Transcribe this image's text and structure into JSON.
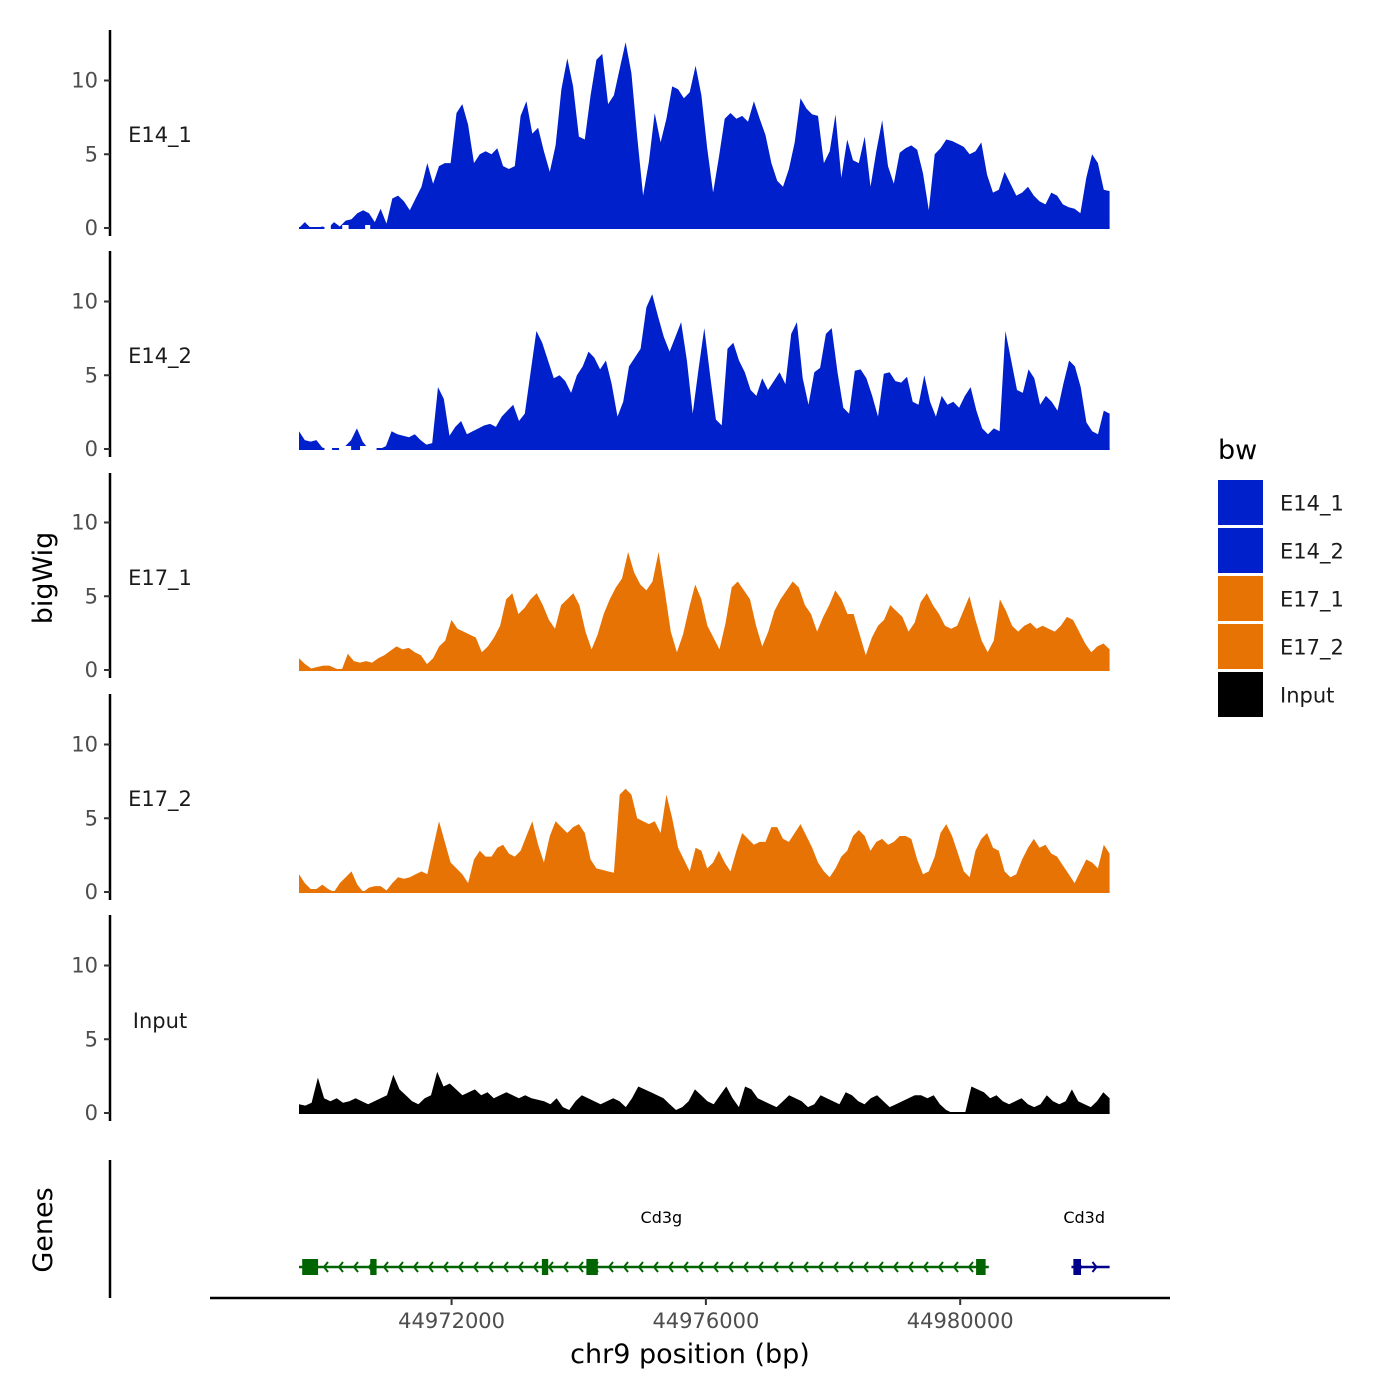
{
  "chart_data": {
    "type": "area",
    "chromosome": "chr9",
    "xlabel": "chr9 position (bp)",
    "ylabel": "bigWig",
    "genes_label": "Genes",
    "xlim": [
      44968200,
      44983300
    ],
    "ylim": [
      0,
      13.5
    ],
    "x_ticks": [
      44972000,
      44976000,
      44980000
    ],
    "x_tick_labels": [
      "44972000",
      "44976000",
      "44980000"
    ],
    "y_ticks": [
      0,
      5,
      10
    ],
    "y_tick_labels": [
      "0",
      "5",
      "10"
    ],
    "legend": {
      "title": "bw",
      "entries": [
        {
          "label": "E14_1",
          "color": "#0020CC"
        },
        {
          "label": "E14_2",
          "color": "#0020CC"
        },
        {
          "label": "E17_1",
          "color": "#E87305"
        },
        {
          "label": "E17_2",
          "color": "#E87305"
        },
        {
          "label": "Input",
          "color": "#000000"
        }
      ]
    },
    "series": [
      {
        "name": "E14_1",
        "color": "#0020CC",
        "x_start": 44969600,
        "x_end": 44982350,
        "values": [
          0.0,
          0.4,
          0.0,
          0.0,
          0.1,
          0.0,
          0.4,
          0.1,
          0.5,
          0.6,
          1.0,
          1.2,
          1.0,
          0.4,
          1.3,
          0.3,
          2.0,
          2.2,
          1.8,
          1.2,
          2.0,
          2.8,
          4.4,
          3.0,
          4.2,
          4.4,
          4.4,
          7.8,
          8.4,
          7.0,
          4.4,
          5.0,
          5.2,
          5.0,
          5.4,
          4.2,
          4.0,
          4.2,
          7.6,
          8.6,
          6.4,
          6.8,
          5.2,
          3.8,
          5.6,
          9.4,
          11.5,
          9.6,
          6.2,
          6.0,
          9.0,
          11.4,
          11.8,
          8.4,
          9.0,
          10.8,
          12.6,
          10.5,
          6.2,
          2.2,
          4.5,
          7.8,
          5.8,
          7.4,
          9.6,
          9.4,
          8.8,
          9.2,
          11.0,
          9.0,
          5.4,
          2.4,
          4.8,
          7.4,
          7.8,
          7.4,
          7.6,
          7.2,
          8.6,
          7.4,
          6.3,
          4.4,
          3.2,
          2.8,
          4.0,
          5.8,
          8.8,
          8.1,
          7.7,
          7.6,
          4.4,
          5.2,
          7.7,
          3.4,
          6.0,
          4.6,
          4.4,
          6.2,
          2.8,
          5.2,
          7.3,
          4.2,
          3.0,
          5.1,
          5.4,
          5.6,
          5.3,
          3.7,
          1.2,
          5.0,
          5.4,
          6.0,
          5.9,
          5.7,
          5.5,
          5.0,
          5.2,
          5.8,
          3.6,
          2.4,
          2.6,
          3.8,
          3.0,
          2.2,
          2.4,
          2.8,
          2.2,
          1.8,
          1.6,
          2.4,
          2.2,
          1.6,
          1.4,
          1.3,
          1.0,
          3.4,
          5.0,
          4.4,
          2.6,
          2.5
        ],
        "gaps": [
          [
            44970000,
            44970100
          ],
          [
            44970280,
            44970380
          ],
          [
            44970640,
            44970720
          ]
        ]
      },
      {
        "name": "E14_2",
        "color": "#0020CC",
        "x_start": 44969600,
        "x_end": 44982350,
        "values": [
          1.2,
          0.6,
          0.5,
          0.6,
          0.1,
          0.0,
          0.0,
          0.0,
          0.2,
          0.6,
          1.4,
          0.5,
          0.0,
          0.0,
          0.0,
          0.2,
          1.2,
          1.0,
          0.9,
          0.8,
          1.0,
          0.6,
          0.3,
          0.4,
          4.2,
          3.4,
          0.9,
          1.5,
          1.9,
          1.0,
          1.2,
          1.4,
          1.6,
          1.7,
          1.5,
          2.2,
          2.6,
          3.0,
          1.9,
          2.4,
          5.2,
          8.0,
          7.2,
          6.0,
          4.8,
          5.0,
          4.6,
          3.8,
          5.0,
          5.6,
          6.6,
          6.2,
          5.4,
          6.0,
          4.4,
          2.2,
          3.2,
          5.6,
          6.2,
          6.8,
          9.6,
          10.5,
          9.0,
          7.6,
          6.6,
          7.6,
          8.6,
          6.0,
          2.4,
          5.4,
          8.2,
          5.0,
          2.0,
          1.6,
          6.8,
          7.2,
          6.0,
          5.2,
          4.0,
          3.6,
          4.8,
          4.0,
          4.6,
          5.2,
          4.4,
          7.8,
          8.6,
          4.8,
          3.0,
          5.2,
          5.5,
          7.8,
          8.2,
          5.2,
          2.8,
          2.4,
          5.3,
          5.4,
          4.8,
          3.6,
          2.2,
          5.1,
          5.2,
          4.6,
          4.5,
          4.9,
          3.2,
          3.0,
          5.0,
          3.2,
          2.2,
          3.6,
          3.0,
          3.2,
          2.8,
          3.6,
          4.2,
          2.6,
          1.4,
          1.0,
          1.4,
          1.2,
          8.0,
          6.0,
          4.0,
          3.8,
          5.4,
          4.8,
          3.0,
          3.6,
          3.2,
          2.6,
          4.4,
          6.0,
          5.6,
          4.2,
          1.8,
          1.2,
          1.0,
          2.6,
          2.4
        ],
        "gaps": [
          [
            44970000,
            44970120
          ],
          [
            44970230,
            44970420
          ],
          [
            44970560,
            44970820
          ]
        ]
      },
      {
        "name": "E17_1",
        "color": "#E87305",
        "x_start": 44969600,
        "x_end": 44982350,
        "values": [
          0.8,
          0.4,
          0.1,
          0.2,
          0.3,
          0.3,
          0.1,
          0.0,
          1.1,
          0.6,
          0.5,
          0.6,
          0.5,
          0.8,
          1.0,
          1.3,
          1.6,
          1.4,
          1.5,
          1.2,
          1.0,
          0.4,
          0.8,
          1.6,
          2.0,
          3.4,
          2.8,
          2.6,
          2.4,
          2.2,
          1.2,
          1.6,
          2.2,
          3.0,
          4.8,
          5.2,
          3.8,
          4.2,
          4.8,
          5.2,
          4.4,
          3.4,
          2.8,
          4.4,
          4.8,
          5.2,
          4.4,
          2.6,
          1.4,
          2.4,
          3.8,
          4.8,
          5.6,
          6.2,
          8.0,
          6.6,
          5.8,
          5.4,
          6.0,
          8.0,
          5.4,
          2.6,
          1.2,
          2.4,
          4.2,
          5.8,
          4.8,
          3.0,
          2.2,
          1.4,
          3.2,
          5.6,
          6.0,
          5.4,
          4.8,
          3.0,
          1.6,
          2.6,
          4.0,
          4.8,
          5.4,
          6.0,
          5.6,
          4.4,
          3.8,
          2.6,
          3.6,
          4.4,
          5.4,
          4.8,
          3.8,
          3.8,
          2.4,
          1.0,
          2.2,
          3.0,
          3.4,
          4.4,
          4.0,
          3.6,
          2.6,
          3.2,
          4.6,
          5.2,
          4.4,
          3.8,
          3.0,
          2.8,
          3.0,
          4.0,
          5.0,
          3.4,
          2.0,
          1.2,
          2.0,
          4.8,
          4.0,
          3.0,
          2.6,
          3.0,
          3.2,
          2.8,
          3.0,
          2.8,
          2.6,
          3.0,
          3.6,
          3.4,
          2.6,
          1.8,
          1.2,
          1.6,
          1.8,
          1.4
        ],
        "gaps": []
      },
      {
        "name": "E17_2",
        "color": "#E87305",
        "x_start": 44969600,
        "x_end": 44982350,
        "values": [
          1.2,
          0.6,
          0.2,
          0.2,
          0.5,
          0.2,
          0.0,
          0.6,
          1.0,
          1.4,
          0.5,
          0.0,
          0.3,
          0.4,
          0.4,
          0.1,
          0.6,
          1.0,
          0.9,
          1.0,
          1.2,
          1.4,
          1.2,
          3.0,
          4.8,
          3.4,
          2.0,
          1.6,
          1.2,
          0.6,
          2.2,
          2.8,
          2.4,
          2.4,
          3.0,
          3.2,
          2.6,
          2.4,
          2.8,
          3.8,
          4.8,
          3.2,
          2.0,
          3.8,
          4.8,
          4.4,
          4.0,
          4.4,
          4.6,
          4.0,
          2.2,
          1.6,
          1.5,
          1.4,
          1.3,
          6.6,
          7.0,
          6.6,
          5.0,
          4.8,
          4.6,
          4.8,
          4.0,
          6.6,
          5.0,
          3.0,
          2.2,
          1.4,
          3.0,
          2.8,
          1.6,
          2.0,
          2.8,
          2.0,
          1.4,
          2.8,
          4.0,
          3.6,
          3.2,
          3.4,
          3.4,
          4.4,
          4.4,
          3.6,
          3.4,
          4.0,
          4.6,
          3.8,
          3.0,
          2.0,
          1.4,
          1.0,
          1.6,
          2.4,
          2.8,
          3.8,
          4.2,
          3.8,
          2.8,
          3.4,
          3.6,
          3.2,
          3.4,
          3.8,
          3.8,
          3.6,
          2.2,
          1.2,
          1.4,
          2.4,
          4.0,
          4.6,
          3.8,
          2.6,
          1.4,
          1.0,
          2.8,
          3.6,
          4.0,
          3.0,
          2.8,
          1.4,
          1.0,
          1.2,
          2.2,
          3.0,
          3.6,
          3.0,
          3.2,
          2.6,
          2.4,
          1.8,
          1.2,
          0.6,
          1.4,
          2.2,
          2.0,
          1.6,
          3.2,
          2.6
        ],
        "gaps": []
      },
      {
        "name": "Input",
        "color": "#000000",
        "x_start": 44969600,
        "x_end": 44982350,
        "values": [
          0.6,
          0.5,
          0.7,
          2.4,
          1.0,
          0.8,
          1.0,
          0.7,
          0.8,
          1.0,
          0.8,
          0.6,
          0.8,
          1.0,
          1.2,
          2.6,
          1.6,
          1.2,
          0.8,
          0.6,
          1.0,
          1.2,
          2.8,
          1.8,
          2.0,
          1.6,
          1.2,
          1.4,
          1.6,
          1.2,
          1.4,
          1.0,
          1.2,
          1.4,
          1.2,
          1.0,
          1.2,
          1.0,
          0.9,
          0.8,
          0.6,
          1.0,
          0.4,
          0.2,
          0.8,
          1.2,
          1.0,
          0.8,
          0.6,
          0.8,
          1.0,
          0.8,
          0.4,
          1.0,
          1.8,
          1.6,
          1.4,
          1.2,
          1.0,
          0.6,
          0.2,
          0.4,
          0.8,
          1.6,
          1.2,
          0.8,
          0.6,
          1.2,
          1.8,
          1.0,
          0.4,
          1.8,
          1.6,
          1.0,
          0.8,
          0.6,
          0.4,
          0.8,
          1.2,
          1.0,
          0.8,
          0.4,
          0.6,
          1.2,
          1.0,
          0.8,
          0.6,
          1.4,
          1.2,
          0.8,
          0.6,
          1.0,
          1.2,
          0.8,
          0.4,
          0.6,
          0.8,
          1.0,
          1.2,
          1.2,
          1.0,
          1.2,
          0.6,
          0.2,
          0.0,
          0.0,
          0.0,
          1.8,
          1.6,
          1.4,
          1.0,
          1.2,
          0.8,
          0.6,
          0.8,
          1.0,
          0.6,
          0.4,
          0.6,
          1.2,
          0.8,
          0.6,
          0.8,
          1.6,
          0.8,
          0.6,
          0.4,
          0.8,
          1.4,
          1.0
        ],
        "gaps": []
      }
    ],
    "genes": [
      {
        "name": "Cd3g",
        "strand": "-",
        "color": "#006400",
        "label_x": 44975300,
        "start": 44969600,
        "end": 44980450,
        "exons": [
          [
            44969650,
            44969900
          ],
          [
            44970720,
            44970820
          ],
          [
            44973420,
            44973520
          ],
          [
            44974120,
            44974300
          ],
          [
            44980250,
            44980400
          ]
        ]
      },
      {
        "name": "Cd3d",
        "strand": "+",
        "color": "#00008B",
        "label_x": 44981950,
        "start": 44981750,
        "end": 44982350,
        "exons": [
          [
            44981780,
            44981900
          ]
        ]
      }
    ]
  }
}
